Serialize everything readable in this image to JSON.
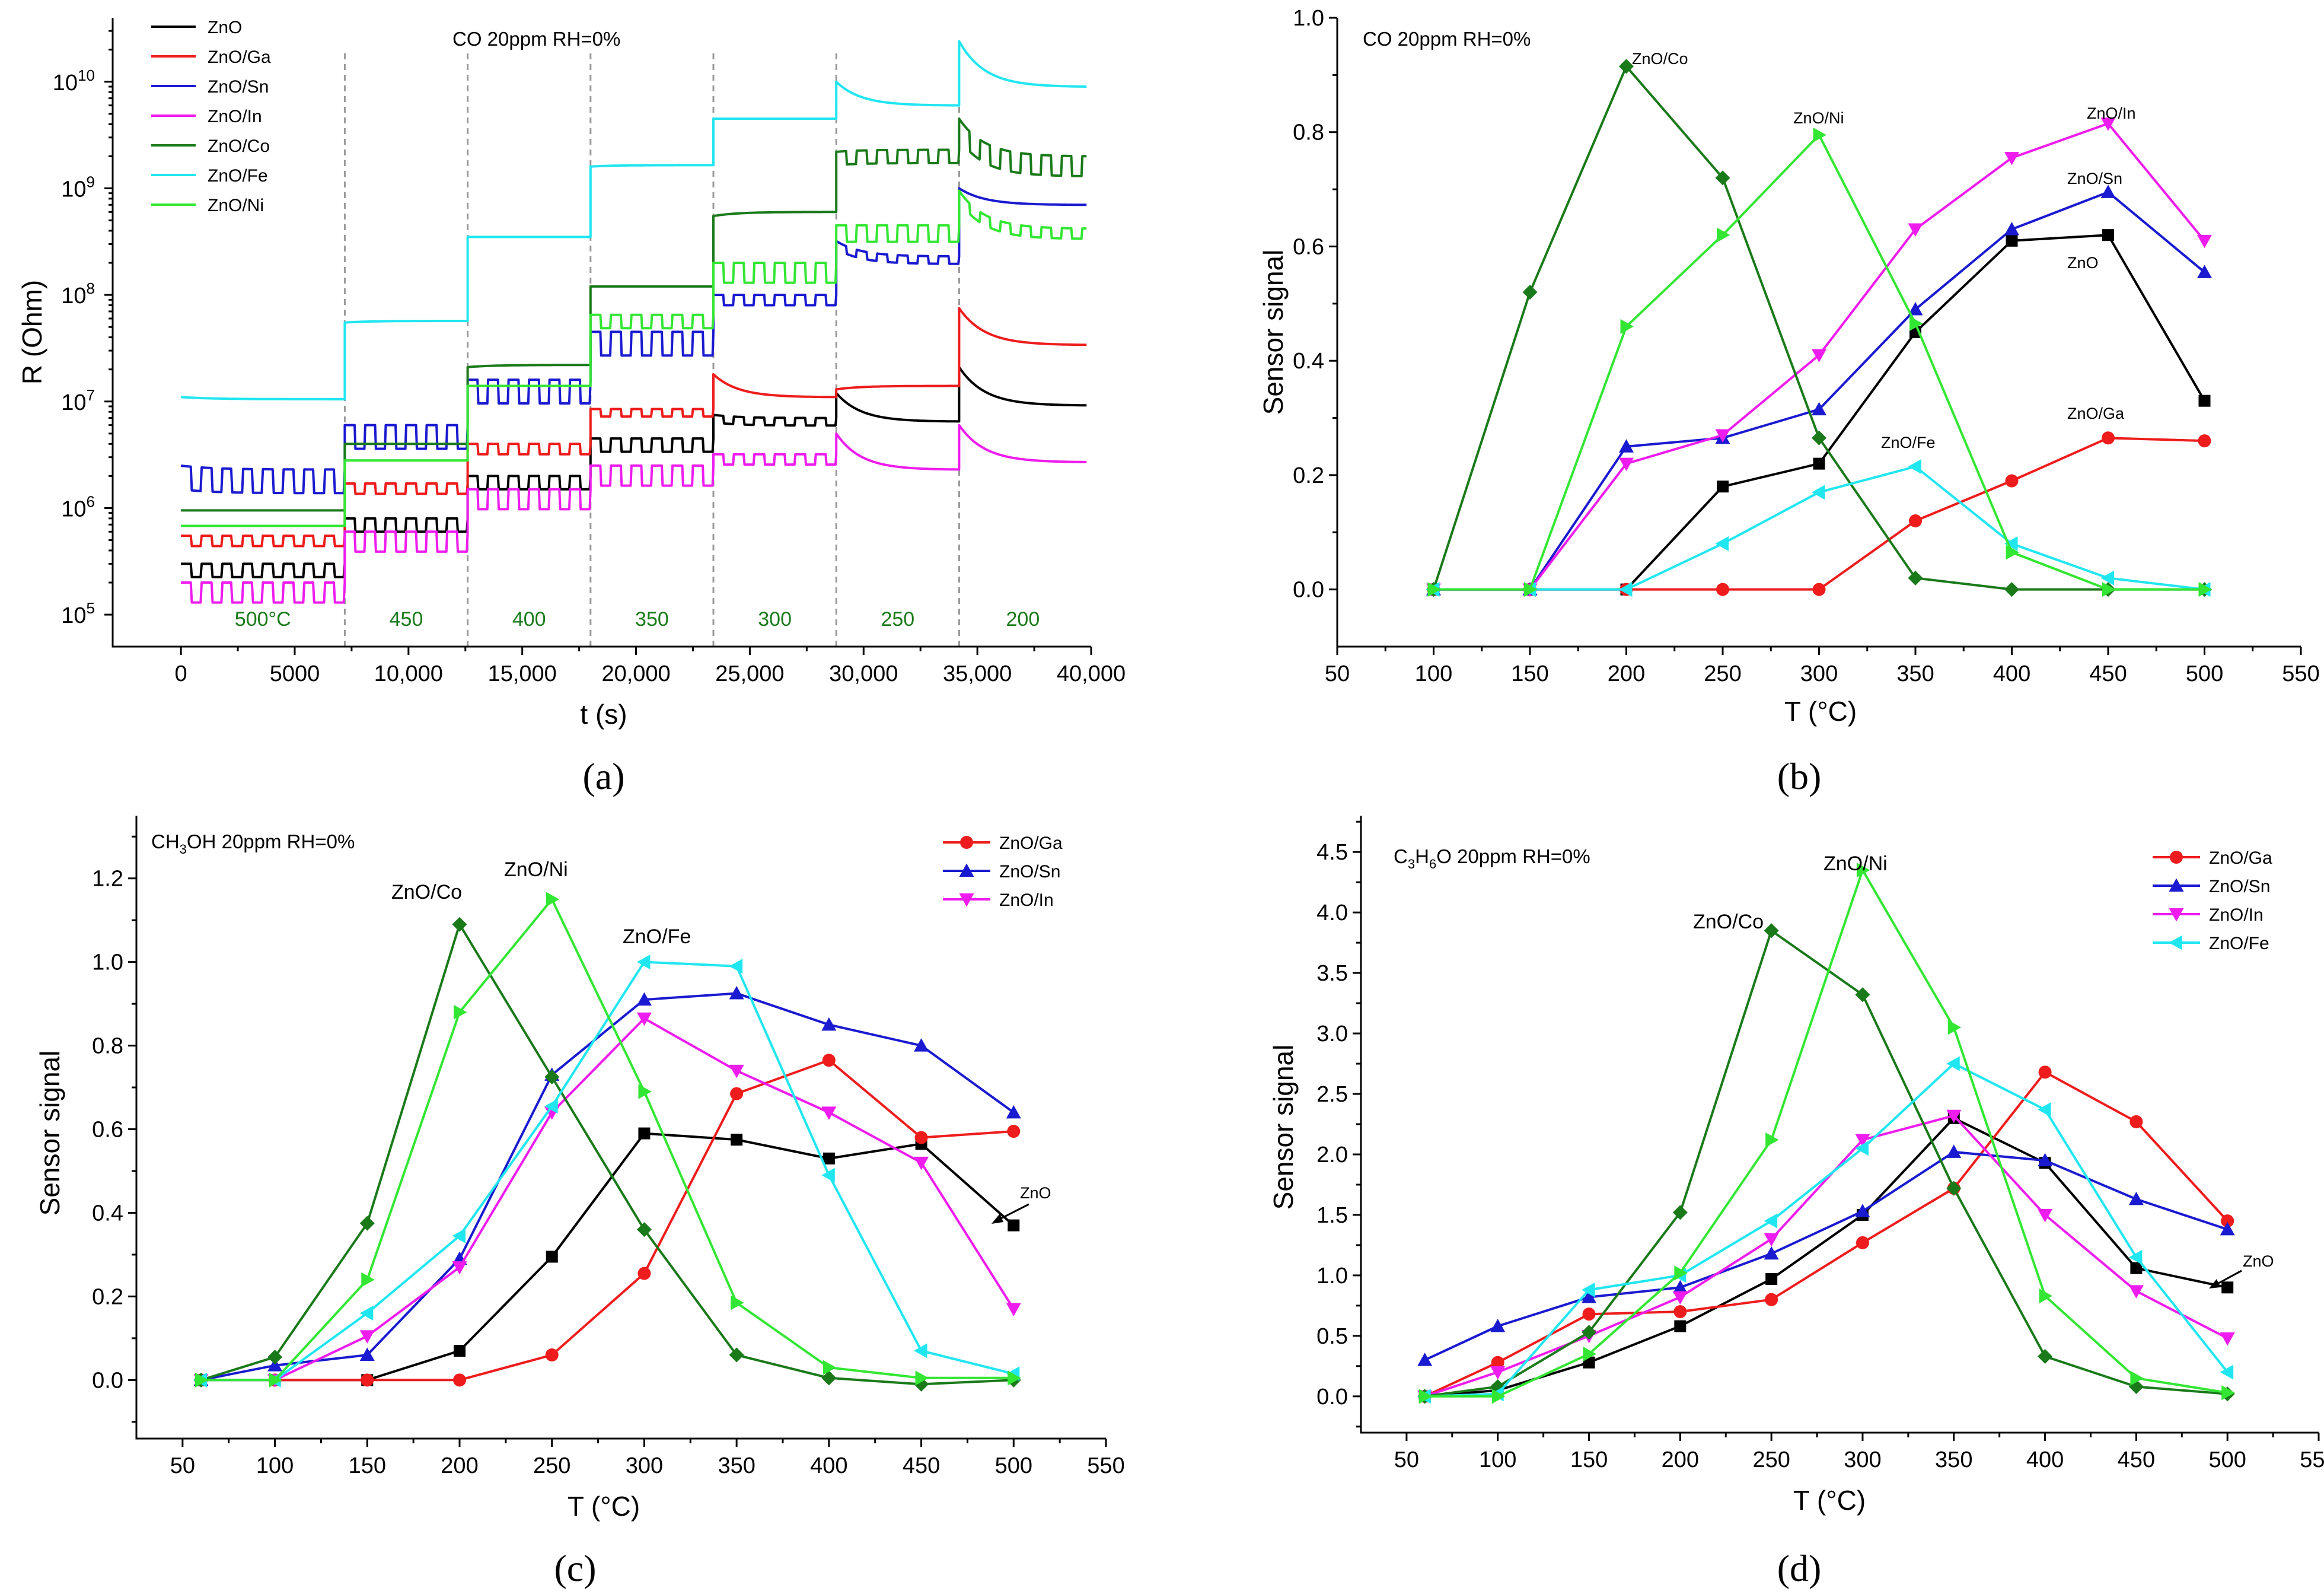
{
  "panels": {
    "a": {
      "caption": "(a)",
      "title": "CO 20ppm RH=0%",
      "xlabel": "t (s)",
      "ylabel": "R (Ohm)",
      "xticks": [
        "0",
        "5000",
        "10,000",
        "15,000",
        "20,000",
        "25,000",
        "30,000",
        "35,000",
        "40,000"
      ],
      "yticks": [
        {
          "base": "10",
          "exp": "5"
        },
        {
          "base": "10",
          "exp": "6"
        },
        {
          "base": "10",
          "exp": "7"
        },
        {
          "base": "10",
          "exp": "8"
        },
        {
          "base": "10",
          "exp": "9"
        },
        {
          "base": "10",
          "exp": "10"
        }
      ],
      "temperature_labels": [
        "500°C",
        "450",
        "400",
        "350",
        "300",
        "250",
        "200"
      ],
      "legend": [
        "ZnO",
        "ZnO/Ga",
        "ZnO/Sn",
        "ZnO/In",
        "ZnO/Co",
        "ZnO/Fe",
        "ZnO/Ni"
      ]
    },
    "b": {
      "caption": "(b)",
      "title": "CO 20ppm RH=0%",
      "xlabel": "T (°C)",
      "ylabel": "Sensor signal",
      "xticks": [
        "50",
        "100",
        "150",
        "200",
        "250",
        "300",
        "350",
        "400",
        "450",
        "500",
        "550"
      ],
      "yticks": [
        "0.0",
        "0.2",
        "0.4",
        "0.6",
        "0.8",
        "1.0"
      ],
      "annotations": [
        "ZnO/Co",
        "ZnO/Ni",
        "ZnO/In",
        "ZnO/Sn",
        "ZnO",
        "ZnO/Fe",
        "ZnO/Ga"
      ]
    },
    "c": {
      "caption": "(c)",
      "title": {
        "base": "CH",
        "sub": "3",
        "rest": "OH 20ppm RH=0%"
      },
      "xlabel": "T (°C)",
      "ylabel": "Sensor signal",
      "xticks": [
        "50",
        "100",
        "150",
        "200",
        "250",
        "300",
        "350",
        "400",
        "450",
        "500",
        "550"
      ],
      "yticks": [
        "0.0",
        "0.2",
        "0.4",
        "0.6",
        "0.8",
        "1.0",
        "1.2"
      ],
      "legend": [
        "ZnO/Ga",
        "ZnO/Sn",
        "ZnO/In"
      ],
      "annotations": [
        "ZnO/Co",
        "ZnO/Ni",
        "ZnO/Fe",
        "ZnO"
      ]
    },
    "d": {
      "caption": "(d)",
      "title": {
        "p1": "C",
        "s1": "3",
        "p2": "H",
        "s2": "6",
        "p3": "O 20ppm RH=0%"
      },
      "xlabel": "T (°C)",
      "ylabel": "Sensor signal",
      "xticks": [
        "50",
        "100",
        "150",
        "200",
        "250",
        "300",
        "350",
        "400",
        "450",
        "500",
        "550"
      ],
      "yticks": [
        "0.0",
        "0.5",
        "1.0",
        "1.5",
        "2.0",
        "2.5",
        "3.0",
        "3.5",
        "4.0",
        "4.5"
      ],
      "legend": [
        "ZnO/Ga",
        "ZnO/Sn",
        "ZnO/In",
        "ZnO/Fe"
      ],
      "annotations": [
        "ZnO/Co",
        "ZnO/Ni",
        "ZnO"
      ]
    }
  },
  "colors": {
    "ZnO": "#000000",
    "ZnO/Ga": "#ee1c1c",
    "ZnO/Sn": "#1a1ad0",
    "ZnO/In": "#ee1cee",
    "ZnO/Co": "#1a7a1a",
    "ZnO/Fe": "#20e6f0",
    "ZnO/Ni": "#33e633"
  },
  "chart_data": [
    {
      "panel": "a",
      "type": "line",
      "title": "CO 20ppm RH=0%",
      "xlabel": "t (s)",
      "ylabel": "R (Ohm)",
      "yscale": "log",
      "xlim": [
        -3000,
        40000
      ],
      "ylim_log10": [
        4.7,
        10.6
      ],
      "segments": [
        {
          "temp": "500°C",
          "t_start": 0,
          "t_end": 7200
        },
        {
          "temp": "450",
          "t_start": 7200,
          "t_end": 12600
        },
        {
          "temp": "400",
          "t_start": 12600,
          "t_end": 18000
        },
        {
          "temp": "350",
          "t_start": 18000,
          "t_end": 23400
        },
        {
          "temp": "300",
          "t_start": 23400,
          "t_end": 28800
        },
        {
          "temp": "250",
          "t_start": 28800,
          "t_end": 34200
        },
        {
          "temp": "200",
          "t_start": 34200,
          "t_end": 39800
        }
      ],
      "series": [
        {
          "name": "ZnO",
          "baseline": [
            300000.0,
            800000.0,
            2000000.0,
            4500000.0,
            7500000.0,
            12000000.0,
            21000000.0
          ],
          "end": [
            300000.0,
            800000.0,
            2000000.0,
            4500000.0,
            7000000.0,
            6500000.0,
            9200000.0
          ],
          "response": [
            0.25,
            0.25,
            0.25,
            0.25,
            0.15,
            0.0,
            0.0
          ]
        },
        {
          "name": "ZnO/Ga",
          "baseline": [
            550000.0,
            1700000.0,
            4000000.0,
            8500000.0,
            18000000.0,
            13000000.0,
            75000000.0
          ],
          "end": [
            550000.0,
            1700000.0,
            4000000.0,
            8500000.0,
            11000000.0,
            14000000.0,
            34000000.0
          ],
          "response": [
            0.2,
            0.2,
            0.2,
            0.15,
            0.0,
            0.0,
            0.0
          ]
        },
        {
          "name": "ZnO/Sn",
          "baseline": [
            2500000.0,
            6000000.0,
            16000000.0,
            45000000.0,
            100000000.0,
            320000000.0,
            1000000000.0
          ],
          "end": [
            2300000.0,
            6000000.0,
            16000000.0,
            45000000.0,
            100000000.0,
            230000000.0,
            700000000.0
          ],
          "response": [
            0.4,
            0.4,
            0.4,
            0.4,
            0.2,
            0.15,
            0.0
          ]
        },
        {
          "name": "ZnO/In",
          "baseline": [
            200000.0,
            600000.0,
            1500000.0,
            2500000.0,
            3200000.0,
            5000000.0,
            6000000.0
          ],
          "end": [
            200000.0,
            600000.0,
            1500000.0,
            2500000.0,
            3200000.0,
            2300000.0,
            2700000.0
          ],
          "response": [
            0.35,
            0.35,
            0.35,
            0.35,
            0.2,
            0.0,
            0.0
          ]
        },
        {
          "name": "ZnO/Co",
          "baseline": [
            950000.0,
            4000000.0,
            21000000.0,
            120000000.0,
            550000000.0,
            2200000000.0,
            4500000000.0
          ],
          "end": [
            950000.0,
            4000000.0,
            22000000.0,
            120000000.0,
            600000000.0,
            2300000000.0,
            2000000000.0
          ],
          "response": [
            0.0,
            0.0,
            0.0,
            0.0,
            0.0,
            0.25,
            0.35
          ]
        },
        {
          "name": "ZnO/Fe",
          "baseline": [
            11000000.0,
            55000000.0,
            350000000.0,
            1600000000.0,
            4500000000.0,
            10000000000.0,
            24000000000.0
          ],
          "end": [
            10500000.0,
            57000000.0,
            350000000.0,
            1650000000.0,
            4500000000.0,
            6000000000.0,
            9000000000.0
          ],
          "response": [
            0.0,
            0.0,
            0.0,
            0.0,
            0.0,
            0.0,
            0.0
          ]
        },
        {
          "name": "ZnO/Ni",
          "baseline": [
            680000.0,
            2800000.0,
            14000000.0,
            65000000.0,
            200000000.0,
            450000000.0,
            950000000.0
          ],
          "end": [
            680000.0,
            2800000.0,
            14000000.0,
            65000000.0,
            200000000.0,
            450000000.0,
            420000000.0
          ],
          "response": [
            0.0,
            0.0,
            0.0,
            0.25,
            0.35,
            0.3,
            0.2
          ]
        }
      ]
    },
    {
      "panel": "b",
      "type": "line",
      "title": "CO 20ppm RH=0%",
      "xlabel": "T (°C)",
      "ylabel": "Sensor signal",
      "xlim": [
        50,
        550
      ],
      "ylim": [
        -0.1,
        1.0
      ],
      "series": [
        {
          "name": "ZnO",
          "marker": "square",
          "x": [
            100,
            150,
            200,
            250,
            300,
            350,
            400,
            450,
            500
          ],
          "y": [
            0,
            0,
            0,
            0.18,
            0.22,
            0.45,
            0.61,
            0.62,
            0.33
          ]
        },
        {
          "name": "ZnO/Ga",
          "marker": "circle",
          "x": [
            100,
            150,
            200,
            250,
            300,
            350,
            400,
            450,
            500
          ],
          "y": [
            0,
            0,
            0,
            0,
            0,
            0.12,
            0.19,
            0.265,
            0.26
          ]
        },
        {
          "name": "ZnO/Sn",
          "marker": "triangle-up",
          "x": [
            100,
            150,
            200,
            250,
            300,
            350,
            400,
            450,
            500
          ],
          "y": [
            0,
            0,
            0.25,
            0.265,
            0.315,
            0.49,
            0.63,
            0.695,
            0.555
          ]
        },
        {
          "name": "ZnO/In",
          "marker": "triangle-down",
          "x": [
            100,
            150,
            200,
            250,
            300,
            350,
            400,
            450,
            500
          ],
          "y": [
            0,
            0,
            0.22,
            0.27,
            0.41,
            0.63,
            0.755,
            0.815,
            0.61
          ]
        },
        {
          "name": "ZnO/Co",
          "marker": "diamond",
          "x": [
            100,
            150,
            200,
            250,
            300,
            350,
            400,
            450,
            500
          ],
          "y": [
            0,
            0.52,
            0.915,
            0.72,
            0.265,
            0.02,
            0,
            0,
            0
          ]
        },
        {
          "name": "ZnO/Fe",
          "marker": "triangle-left",
          "x": [
            100,
            150,
            200,
            250,
            300,
            350,
            400,
            450,
            500
          ],
          "y": [
            0,
            0,
            0,
            0.08,
            0.17,
            0.215,
            0.08,
            0.02,
            0
          ]
        },
        {
          "name": "ZnO/Ni",
          "marker": "triangle-right",
          "x": [
            100,
            150,
            200,
            250,
            300,
            350,
            400,
            450,
            500
          ],
          "y": [
            0,
            0,
            0.46,
            0.62,
            0.795,
            0.465,
            0.065,
            0,
            0
          ]
        }
      ]
    },
    {
      "panel": "c",
      "type": "line",
      "title": "CH3OH 20ppm RH=0%",
      "xlabel": "T (°C)",
      "ylabel": "Sensor signal",
      "xlim": [
        25,
        550
      ],
      "ylim": [
        -0.14,
        1.35
      ],
      "series": [
        {
          "name": "ZnO",
          "marker": "square",
          "x": [
            60,
            100,
            150,
            200,
            250,
            300,
            350,
            400,
            450,
            500
          ],
          "y": [
            0,
            0,
            0,
            0.07,
            0.295,
            0.59,
            0.575,
            0.53,
            0.565,
            0.37
          ]
        },
        {
          "name": "ZnO/Ga",
          "marker": "circle",
          "x": [
            60,
            100,
            150,
            200,
            250,
            300,
            350,
            400,
            450,
            500
          ],
          "y": [
            0,
            0,
            0,
            0,
            0.06,
            0.255,
            0.685,
            0.765,
            0.58,
            0.595
          ]
        },
        {
          "name": "ZnO/Sn",
          "marker": "triangle-up",
          "x": [
            60,
            100,
            150,
            200,
            250,
            300,
            350,
            400,
            450,
            500
          ],
          "y": [
            0,
            0.035,
            0.06,
            0.29,
            0.73,
            0.91,
            0.925,
            0.85,
            0.8,
            0.64
          ]
        },
        {
          "name": "ZnO/In",
          "marker": "triangle-down",
          "x": [
            60,
            100,
            150,
            200,
            250,
            300,
            350,
            400,
            450,
            500
          ],
          "y": [
            0,
            0,
            0.105,
            0.27,
            0.64,
            0.865,
            0.74,
            0.64,
            0.52,
            0.17
          ]
        },
        {
          "name": "ZnO/Co",
          "marker": "diamond",
          "x": [
            60,
            100,
            150,
            200,
            250,
            300,
            350,
            400,
            450,
            500
          ],
          "y": [
            0,
            0.055,
            0.375,
            1.09,
            0.725,
            0.36,
            0.06,
            0.005,
            -0.01,
            0
          ]
        },
        {
          "name": "ZnO/Fe",
          "marker": "triangle-left",
          "x": [
            60,
            100,
            150,
            200,
            250,
            300,
            350,
            400,
            450,
            500
          ],
          "y": [
            0,
            0,
            0.16,
            0.345,
            0.655,
            1.0,
            0.99,
            0.49,
            0.07,
            0.015
          ]
        },
        {
          "name": "ZnO/Ni",
          "marker": "triangle-right",
          "x": [
            60,
            100,
            150,
            200,
            250,
            300,
            350,
            400,
            450,
            500
          ],
          "y": [
            0,
            0,
            0.24,
            0.88,
            1.15,
            0.69,
            0.185,
            0.03,
            0.005,
            0.005
          ]
        }
      ]
    },
    {
      "panel": "d",
      "type": "line",
      "title": "C3H6O 20ppm RH=0%",
      "xlabel": "T (°C)",
      "ylabel": "Sensor signal",
      "xlim": [
        25,
        550
      ],
      "ylim": [
        -0.3,
        4.8
      ],
      "series": [
        {
          "name": "ZnO",
          "marker": "square",
          "x": [
            60,
            100,
            150,
            200,
            250,
            300,
            350,
            400,
            450,
            500
          ],
          "y": [
            0,
            0.05,
            0.28,
            0.58,
            0.97,
            1.5,
            2.3,
            1.93,
            1.06,
            0.9
          ]
        },
        {
          "name": "ZnO/Ga",
          "marker": "circle",
          "x": [
            60,
            100,
            150,
            200,
            250,
            300,
            350,
            400,
            450,
            500
          ],
          "y": [
            0,
            0.28,
            0.68,
            0.7,
            0.8,
            1.27,
            1.72,
            2.68,
            2.27,
            1.45
          ]
        },
        {
          "name": "ZnO/Sn",
          "marker": "triangle-up",
          "x": [
            60,
            100,
            150,
            200,
            250,
            300,
            350,
            400,
            450,
            500
          ],
          "y": [
            0.3,
            0.58,
            0.82,
            0.9,
            1.18,
            1.53,
            2.02,
            1.95,
            1.63,
            1.38
          ]
        },
        {
          "name": "ZnO/In",
          "marker": "triangle-down",
          "x": [
            60,
            100,
            150,
            200,
            250,
            300,
            350,
            400,
            450,
            500
          ],
          "y": [
            0,
            0.2,
            0.5,
            0.82,
            1.3,
            2.12,
            2.32,
            1.5,
            0.87,
            0.48
          ]
        },
        {
          "name": "ZnO/Co",
          "marker": "diamond",
          "x": [
            60,
            100,
            150,
            200,
            250,
            300,
            350,
            400,
            450,
            500
          ],
          "y": [
            0,
            0.08,
            0.53,
            1.52,
            3.85,
            3.32,
            1.72,
            0.33,
            0.08,
            0.02
          ]
        },
        {
          "name": "ZnO/Fe",
          "marker": "triangle-left",
          "x": [
            60,
            100,
            150,
            200,
            250,
            300,
            350,
            400,
            450,
            500
          ],
          "y": [
            0,
            0.02,
            0.88,
            1.0,
            1.45,
            2.05,
            2.75,
            2.37,
            1.15,
            0.2
          ]
        },
        {
          "name": "ZnO/Ni",
          "marker": "triangle-right",
          "x": [
            60,
            100,
            150,
            200,
            250,
            300,
            350,
            400,
            450,
            500
          ],
          "y": [
            0,
            0,
            0.35,
            1.02,
            2.12,
            4.35,
            3.05,
            0.83,
            0.15,
            0.03
          ]
        }
      ]
    }
  ]
}
